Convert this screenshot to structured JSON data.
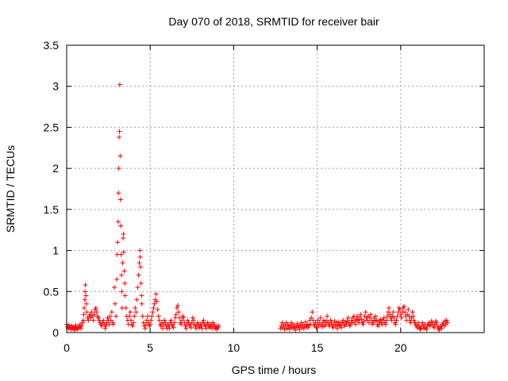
{
  "chart_data": {
    "type": "scatter",
    "title": "Day 070 of 2018, SRMTID for receiver bair",
    "xlabel": "GPS time / hours",
    "ylabel": "SRMTID / TECUs",
    "xlim": [
      0,
      25
    ],
    "ylim": [
      0,
      3.5
    ],
    "x_ticks": [
      0,
      5,
      10,
      15,
      20
    ],
    "x_tick_labels": [
      "0",
      "5",
      "10",
      "15",
      "20"
    ],
    "y_ticks": [
      0,
      0.5,
      1,
      1.5,
      2,
      2.5,
      3,
      3.5
    ],
    "y_tick_labels": [
      "0",
      "0.5",
      "1",
      "1.5",
      "2",
      "2.5",
      "3",
      "3.5"
    ],
    "grid": true,
    "marker": "plus",
    "marker_color": "#ff0000",
    "points": [
      [
        0.0,
        0.1
      ],
      [
        0.05,
        0.07
      ],
      [
        0.1,
        0.05
      ],
      [
        0.15,
        0.09
      ],
      [
        0.2,
        0.06
      ],
      [
        0.25,
        0.04
      ],
      [
        0.3,
        0.08
      ],
      [
        0.35,
        0.05
      ],
      [
        0.4,
        0.07
      ],
      [
        0.45,
        0.03
      ],
      [
        0.5,
        0.06
      ],
      [
        0.55,
        0.09
      ],
      [
        0.6,
        0.05
      ],
      [
        0.65,
        0.04
      ],
      [
        0.7,
        0.07
      ],
      [
        0.75,
        0.06
      ],
      [
        0.8,
        0.1
      ],
      [
        0.85,
        0.05
      ],
      [
        0.9,
        0.08
      ],
      [
        0.95,
        0.12
      ],
      [
        1.0,
        0.15
      ],
      [
        1.02,
        0.22
      ],
      [
        1.05,
        0.3
      ],
      [
        1.08,
        0.4
      ],
      [
        1.1,
        0.5
      ],
      [
        1.12,
        0.58
      ],
      [
        1.15,
        0.45
      ],
      [
        1.18,
        0.35
      ],
      [
        1.2,
        0.25
      ],
      [
        1.25,
        0.18
      ],
      [
        1.3,
        0.15
      ],
      [
        1.35,
        0.2
      ],
      [
        1.4,
        0.22
      ],
      [
        1.45,
        0.18
      ],
      [
        1.5,
        0.25
      ],
      [
        1.55,
        0.2
      ],
      [
        1.6,
        0.15
      ],
      [
        1.65,
        0.22
      ],
      [
        1.7,
        0.28
      ],
      [
        1.75,
        0.3
      ],
      [
        1.8,
        0.25
      ],
      [
        1.85,
        0.2
      ],
      [
        1.9,
        0.18
      ],
      [
        1.95,
        0.15
      ],
      [
        2.0,
        0.12
      ],
      [
        2.05,
        0.1
      ],
      [
        2.1,
        0.08
      ],
      [
        2.15,
        0.12
      ],
      [
        2.2,
        0.15
      ],
      [
        2.25,
        0.1
      ],
      [
        2.3,
        0.05
      ],
      [
        2.35,
        0.08
      ],
      [
        2.4,
        0.12
      ],
      [
        2.45,
        0.18
      ],
      [
        2.5,
        0.15
      ],
      [
        2.55,
        0.1
      ],
      [
        2.6,
        0.2
      ],
      [
        2.65,
        0.15
      ],
      [
        2.7,
        0.25
      ],
      [
        2.75,
        0.12
      ],
      [
        2.8,
        0.1
      ],
      [
        2.85,
        0.55
      ],
      [
        2.9,
        0.35
      ],
      [
        2.95,
        0.2
      ],
      [
        3.0,
        0.65
      ],
      [
        3.02,
        0.95
      ],
      [
        3.05,
        1.1
      ],
      [
        3.08,
        1.35
      ],
      [
        3.1,
        1.7
      ],
      [
        3.12,
        2.0
      ],
      [
        3.14,
        2.38
      ],
      [
        3.16,
        2.45
      ],
      [
        3.18,
        3.02
      ],
      [
        3.2,
        2.15
      ],
      [
        3.22,
        1.62
      ],
      [
        3.24,
        1.3
      ],
      [
        3.26,
        0.95
      ],
      [
        3.28,
        0.7
      ],
      [
        3.3,
        0.5
      ],
      [
        3.32,
        0.3
      ],
      [
        3.35,
        0.85
      ],
      [
        3.38,
        1.15
      ],
      [
        3.4,
        1.2
      ],
      [
        3.42,
        0.98
      ],
      [
        3.45,
        0.75
      ],
      [
        3.48,
        0.6
      ],
      [
        3.5,
        0.45
      ],
      [
        3.55,
        0.3
      ],
      [
        3.6,
        0.2
      ],
      [
        3.65,
        0.15
      ],
      [
        3.7,
        0.1
      ],
      [
        3.75,
        0.2
      ],
      [
        3.8,
        0.25
      ],
      [
        3.85,
        0.15
      ],
      [
        3.9,
        0.1
      ],
      [
        3.95,
        0.08
      ],
      [
        4.0,
        0.12
      ],
      [
        4.05,
        0.2
      ],
      [
        4.1,
        0.3
      ],
      [
        4.15,
        0.25
      ],
      [
        4.2,
        0.4
      ],
      [
        4.25,
        0.55
      ],
      [
        4.3,
        0.7
      ],
      [
        4.35,
        0.85
      ],
      [
        4.38,
        1.0
      ],
      [
        4.4,
        0.92
      ],
      [
        4.42,
        0.8
      ],
      [
        4.45,
        0.6
      ],
      [
        4.48,
        0.45
      ],
      [
        4.5,
        0.35
      ],
      [
        4.55,
        0.2
      ],
      [
        4.6,
        0.12
      ],
      [
        4.65,
        0.08
      ],
      [
        4.7,
        0.05
      ],
      [
        4.75,
        0.1
      ],
      [
        4.8,
        0.15
      ],
      [
        4.85,
        0.2
      ],
      [
        4.9,
        0.12
      ],
      [
        4.95,
        0.08
      ],
      [
        5.0,
        0.1
      ],
      [
        5.05,
        0.15
      ],
      [
        5.1,
        0.2
      ],
      [
        5.15,
        0.25
      ],
      [
        5.2,
        0.3
      ],
      [
        5.25,
        0.35
      ],
      [
        5.3,
        0.4
      ],
      [
        5.35,
        0.47
      ],
      [
        5.4,
        0.38
      ],
      [
        5.45,
        0.28
      ],
      [
        5.5,
        0.2
      ],
      [
        5.55,
        0.15
      ],
      [
        5.6,
        0.1
      ],
      [
        5.65,
        0.08
      ],
      [
        5.7,
        0.12
      ],
      [
        5.75,
        0.05
      ],
      [
        5.8,
        0.1
      ],
      [
        5.85,
        0.15
      ],
      [
        5.9,
        0.12
      ],
      [
        5.95,
        0.08
      ],
      [
        6.0,
        0.05
      ],
      [
        6.05,
        0.1
      ],
      [
        6.1,
        0.08
      ],
      [
        6.15,
        0.05
      ],
      [
        6.2,
        0.12
      ],
      [
        6.25,
        0.15
      ],
      [
        6.3,
        0.1
      ],
      [
        6.35,
        0.08
      ],
      [
        6.4,
        0.06
      ],
      [
        6.45,
        0.12
      ],
      [
        6.5,
        0.18
      ],
      [
        6.55,
        0.22
      ],
      [
        6.6,
        0.3
      ],
      [
        6.65,
        0.33
      ],
      [
        6.7,
        0.25
      ],
      [
        6.75,
        0.18
      ],
      [
        6.8,
        0.12
      ],
      [
        6.85,
        0.1
      ],
      [
        6.9,
        0.15
      ],
      [
        6.95,
        0.2
      ],
      [
        7.0,
        0.18
      ],
      [
        7.05,
        0.12
      ],
      [
        7.1,
        0.08
      ],
      [
        7.15,
        0.05
      ],
      [
        7.2,
        0.1
      ],
      [
        7.25,
        0.15
      ],
      [
        7.3,
        0.12
      ],
      [
        7.35,
        0.08
      ],
      [
        7.4,
        0.1
      ],
      [
        7.45,
        0.06
      ],
      [
        7.5,
        0.12
      ],
      [
        7.55,
        0.18
      ],
      [
        7.6,
        0.15
      ],
      [
        7.65,
        0.1
      ],
      [
        7.7,
        0.08
      ],
      [
        7.75,
        0.05
      ],
      [
        7.8,
        0.1
      ],
      [
        7.85,
        0.12
      ],
      [
        7.9,
        0.08
      ],
      [
        7.95,
        0.06
      ],
      [
        8.0,
        0.1
      ],
      [
        8.05,
        0.08
      ],
      [
        8.1,
        0.05
      ],
      [
        8.15,
        0.12
      ],
      [
        8.2,
        0.15
      ],
      [
        8.25,
        0.1
      ],
      [
        8.3,
        0.08
      ],
      [
        8.35,
        0.05
      ],
      [
        8.4,
        0.1
      ],
      [
        8.45,
        0.12
      ],
      [
        8.5,
        0.08
      ],
      [
        8.55,
        0.06
      ],
      [
        8.6,
        0.1
      ],
      [
        8.65,
        0.08
      ],
      [
        8.7,
        0.05
      ],
      [
        8.75,
        0.12
      ],
      [
        8.8,
        0.1
      ],
      [
        8.85,
        0.07
      ],
      [
        8.9,
        0.05
      ],
      [
        8.95,
        0.08
      ],
      [
        9.0,
        0.04
      ],
      [
        9.05,
        0.06
      ],
      [
        9.1,
        0.08
      ],
      [
        12.8,
        0.05
      ],
      [
        12.85,
        0.08
      ],
      [
        12.9,
        0.12
      ],
      [
        12.95,
        0.06
      ],
      [
        13.0,
        0.1
      ],
      [
        13.05,
        0.04
      ],
      [
        13.1,
        0.08
      ],
      [
        13.15,
        0.12
      ],
      [
        13.2,
        0.05
      ],
      [
        13.25,
        0.1
      ],
      [
        13.3,
        0.07
      ],
      [
        13.35,
        0.04
      ],
      [
        13.4,
        0.08
      ],
      [
        13.45,
        0.12
      ],
      [
        13.5,
        0.06
      ],
      [
        13.55,
        0.1
      ],
      [
        13.6,
        0.05
      ],
      [
        13.65,
        0.08
      ],
      [
        13.7,
        0.03
      ],
      [
        13.75,
        0.07
      ],
      [
        13.8,
        0.11
      ],
      [
        13.85,
        0.06
      ],
      [
        13.9,
        0.09
      ],
      [
        13.95,
        0.04
      ],
      [
        14.0,
        0.08
      ],
      [
        14.05,
        0.12
      ],
      [
        14.1,
        0.06
      ],
      [
        14.15,
        0.1
      ],
      [
        14.2,
        0.05
      ],
      [
        14.25,
        0.08
      ],
      [
        14.3,
        0.13
      ],
      [
        14.35,
        0.07
      ],
      [
        14.4,
        0.1
      ],
      [
        14.45,
        0.06
      ],
      [
        14.5,
        0.09
      ],
      [
        14.55,
        0.15
      ],
      [
        14.6,
        0.1
      ],
      [
        14.65,
        0.18
      ],
      [
        14.7,
        0.25
      ],
      [
        14.75,
        0.15
      ],
      [
        14.8,
        0.1
      ],
      [
        14.85,
        0.08
      ],
      [
        14.9,
        0.12
      ],
      [
        14.95,
        0.06
      ],
      [
        15.0,
        0.1
      ],
      [
        15.05,
        0.15
      ],
      [
        15.1,
        0.08
      ],
      [
        15.15,
        0.12
      ],
      [
        15.2,
        0.18
      ],
      [
        15.25,
        0.1
      ],
      [
        15.3,
        0.07
      ],
      [
        15.35,
        0.12
      ],
      [
        15.4,
        0.15
      ],
      [
        15.45,
        0.08
      ],
      [
        15.5,
        0.1
      ],
      [
        15.55,
        0.14
      ],
      [
        15.6,
        0.2
      ],
      [
        15.65,
        0.12
      ],
      [
        15.7,
        0.08
      ],
      [
        15.75,
        0.1
      ],
      [
        15.8,
        0.15
      ],
      [
        15.85,
        0.12
      ],
      [
        15.9,
        0.08
      ],
      [
        15.95,
        0.06
      ],
      [
        16.0,
        0.1
      ],
      [
        16.05,
        0.14
      ],
      [
        16.1,
        0.08
      ],
      [
        16.15,
        0.12
      ],
      [
        16.2,
        0.05
      ],
      [
        16.25,
        0.09
      ],
      [
        16.3,
        0.13
      ],
      [
        16.35,
        0.08
      ],
      [
        16.4,
        0.1
      ],
      [
        16.45,
        0.06
      ],
      [
        16.5,
        0.12
      ],
      [
        16.55,
        0.15
      ],
      [
        16.6,
        0.1
      ],
      [
        16.65,
        0.08
      ],
      [
        16.7,
        0.13
      ],
      [
        16.75,
        0.1
      ],
      [
        16.8,
        0.14
      ],
      [
        16.85,
        0.18
      ],
      [
        16.9,
        0.12
      ],
      [
        16.95,
        0.08
      ],
      [
        17.0,
        0.1
      ],
      [
        17.05,
        0.15
      ],
      [
        17.1,
        0.12
      ],
      [
        17.15,
        0.18
      ],
      [
        17.2,
        0.2
      ],
      [
        17.25,
        0.14
      ],
      [
        17.3,
        0.1
      ],
      [
        17.35,
        0.16
      ],
      [
        17.4,
        0.2
      ],
      [
        17.45,
        0.15
      ],
      [
        17.5,
        0.12
      ],
      [
        17.55,
        0.18
      ],
      [
        17.6,
        0.22
      ],
      [
        17.65,
        0.16
      ],
      [
        17.7,
        0.12
      ],
      [
        17.75,
        0.1
      ],
      [
        17.8,
        0.14
      ],
      [
        17.85,
        0.2
      ],
      [
        17.9,
        0.25
      ],
      [
        17.95,
        0.18
      ],
      [
        18.0,
        0.15
      ],
      [
        18.05,
        0.2
      ],
      [
        18.1,
        0.12
      ],
      [
        18.15,
        0.18
      ],
      [
        18.2,
        0.22
      ],
      [
        18.25,
        0.15
      ],
      [
        18.3,
        0.1
      ],
      [
        18.35,
        0.12
      ],
      [
        18.4,
        0.18
      ],
      [
        18.45,
        0.14
      ],
      [
        18.5,
        0.2
      ],
      [
        18.55,
        0.15
      ],
      [
        18.6,
        0.1
      ],
      [
        18.65,
        0.08
      ],
      [
        18.7,
        0.14
      ],
      [
        18.75,
        0.12
      ],
      [
        18.8,
        0.16
      ],
      [
        18.85,
        0.12
      ],
      [
        18.9,
        0.1
      ],
      [
        18.95,
        0.15
      ],
      [
        19.0,
        0.18
      ],
      [
        19.05,
        0.12
      ],
      [
        19.1,
        0.1
      ],
      [
        19.15,
        0.15
      ],
      [
        19.2,
        0.2
      ],
      [
        19.25,
        0.25
      ],
      [
        19.3,
        0.3
      ],
      [
        19.35,
        0.22
      ],
      [
        19.4,
        0.18
      ],
      [
        19.45,
        0.15
      ],
      [
        19.5,
        0.2
      ],
      [
        19.55,
        0.25
      ],
      [
        19.6,
        0.18
      ],
      [
        19.65,
        0.12
      ],
      [
        19.7,
        0.1
      ],
      [
        19.75,
        0.15
      ],
      [
        19.8,
        0.2
      ],
      [
        19.85,
        0.25
      ],
      [
        19.9,
        0.3
      ],
      [
        19.95,
        0.28
      ],
      [
        20.0,
        0.22
      ],
      [
        20.05,
        0.18
      ],
      [
        20.1,
        0.25
      ],
      [
        20.15,
        0.3
      ],
      [
        20.2,
        0.32
      ],
      [
        20.25,
        0.25
      ],
      [
        20.3,
        0.2
      ],
      [
        20.35,
        0.15
      ],
      [
        20.4,
        0.22
      ],
      [
        20.45,
        0.28
      ],
      [
        20.5,
        0.2
      ],
      [
        20.55,
        0.15
      ],
      [
        20.6,
        0.12
      ],
      [
        20.65,
        0.18
      ],
      [
        20.7,
        0.25
      ],
      [
        20.75,
        0.2
      ],
      [
        20.8,
        0.15
      ],
      [
        20.85,
        0.12
      ],
      [
        20.9,
        0.1
      ],
      [
        20.95,
        0.08
      ],
      [
        21.0,
        0.06
      ],
      [
        21.05,
        0.12
      ],
      [
        21.1,
        0.08
      ],
      [
        21.15,
        0.05
      ],
      [
        21.2,
        0.04
      ],
      [
        21.25,
        0.08
      ],
      [
        21.3,
        0.12
      ],
      [
        21.35,
        0.08
      ],
      [
        21.4,
        0.05
      ],
      [
        21.45,
        0.1
      ],
      [
        21.5,
        0.06
      ],
      [
        21.55,
        0.04
      ],
      [
        21.6,
        0.08
      ],
      [
        21.65,
        0.1
      ],
      [
        21.7,
        0.12
      ],
      [
        21.75,
        0.08
      ],
      [
        21.8,
        0.1
      ],
      [
        21.85,
        0.14
      ],
      [
        21.9,
        0.12
      ],
      [
        21.95,
        0.08
      ],
      [
        22.0,
        0.06
      ],
      [
        22.05,
        0.1
      ],
      [
        22.1,
        0.14
      ],
      [
        22.15,
        0.12
      ],
      [
        22.2,
        0.08
      ],
      [
        22.25,
        0.05
      ],
      [
        22.3,
        0.03
      ],
      [
        22.35,
        0.06
      ],
      [
        22.4,
        0.08
      ],
      [
        22.45,
        0.05
      ],
      [
        22.5,
        0.1
      ],
      [
        22.55,
        0.12
      ],
      [
        22.6,
        0.08
      ],
      [
        22.65,
        0.14
      ],
      [
        22.7,
        0.1
      ],
      [
        22.75,
        0.15
      ],
      [
        22.8,
        0.12
      ]
    ]
  }
}
